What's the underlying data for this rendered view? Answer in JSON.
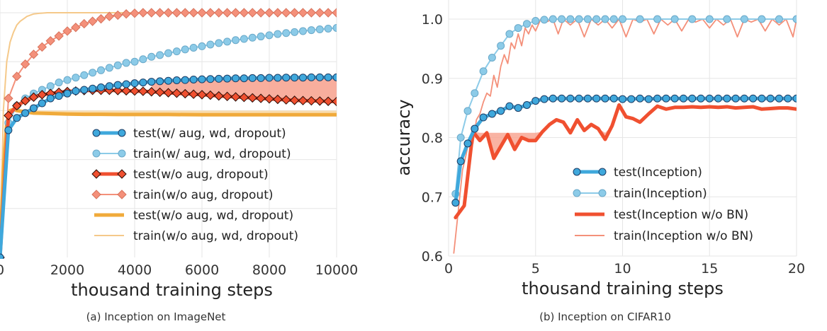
{
  "chart_data": [
    {
      "type": "line",
      "caption": "(a) Inception on ImageNet",
      "xlabel": "thousand training steps",
      "ylabel": "",
      "xlim": [
        0,
        10000
      ],
      "ylim": [
        0.0,
        1.0
      ],
      "x_ticks": [
        "0",
        "2000",
        "4000",
        "6000",
        "8000",
        "10000"
      ],
      "y_ticks": [],
      "grid": true,
      "legend_position": "center-right",
      "colors": {
        "blue": "#3fa8dc",
        "lightblue": "#8ccbe8",
        "red": "#f05030",
        "salmon": "#f4907a",
        "orange": "#f0aa3a",
        "lightorange": "#f5c98a"
      },
      "series": [
        {
          "name": "test(w/ aug, wd, dropout)",
          "style": "blue-thick-markers",
          "x": [
            0,
            250,
            500,
            750,
            1000,
            1250,
            1500,
            1750,
            2000,
            2250,
            2500,
            2750,
            3000,
            3250,
            3500,
            3750,
            4000,
            4250,
            4500,
            4750,
            5000,
            5250,
            5500,
            5750,
            6000,
            6250,
            6500,
            6750,
            7000,
            7250,
            7500,
            7750,
            8000,
            8250,
            8500,
            8750,
            9000,
            9250,
            9500,
            9750,
            10000
          ],
          "y": [
            0.0,
            0.52,
            0.57,
            0.59,
            0.61,
            0.63,
            0.65,
            0.66,
            0.67,
            0.68,
            0.685,
            0.69,
            0.695,
            0.7,
            0.705,
            0.708,
            0.712,
            0.715,
            0.718,
            0.72,
            0.722,
            0.724,
            0.725,
            0.727,
            0.728,
            0.729,
            0.73,
            0.731,
            0.732,
            0.732,
            0.733,
            0.733,
            0.734,
            0.734,
            0.735,
            0.735,
            0.735,
            0.736,
            0.736,
            0.736,
            0.736
          ]
        },
        {
          "name": "train(w/ aug, wd, dropout)",
          "style": "lightblue-thin-markers",
          "x": [
            0,
            250,
            500,
            750,
            1000,
            1250,
            1500,
            1750,
            2000,
            2250,
            2500,
            2750,
            3000,
            3250,
            3500,
            3750,
            4000,
            4250,
            4500,
            4750,
            5000,
            5250,
            5500,
            5750,
            6000,
            6250,
            6500,
            6750,
            7000,
            7250,
            7500,
            7750,
            8000,
            8250,
            8500,
            8750,
            9000,
            9250,
            9500,
            9750,
            10000
          ],
          "y": [
            0.0,
            0.55,
            0.62,
            0.65,
            0.67,
            0.685,
            0.7,
            0.715,
            0.725,
            0.735,
            0.745,
            0.755,
            0.765,
            0.775,
            0.785,
            0.795,
            0.8,
            0.81,
            0.82,
            0.827,
            0.835,
            0.842,
            0.85,
            0.857,
            0.863,
            0.87,
            0.876,
            0.882,
            0.888,
            0.893,
            0.898,
            0.903,
            0.908,
            0.913,
            0.917,
            0.921,
            0.925,
            0.929,
            0.932,
            0.935,
            0.938
          ]
        },
        {
          "name": "test(w/o aug, dropout)",
          "style": "red-thick-diamonds",
          "x": [
            0,
            250,
            500,
            750,
            1000,
            1250,
            1500,
            1750,
            2000,
            2250,
            2500,
            2750,
            3000,
            3250,
            3500,
            3750,
            4000,
            4250,
            4500,
            4750,
            5000,
            5250,
            5500,
            5750,
            6000,
            6250,
            6500,
            6750,
            7000,
            7250,
            7500,
            7750,
            8000,
            8250,
            8500,
            8750,
            9000,
            9250,
            9500,
            9750,
            10000
          ],
          "y": [
            0.0,
            0.58,
            0.62,
            0.64,
            0.655,
            0.665,
            0.67,
            0.675,
            0.678,
            0.68,
            0.682,
            0.683,
            0.683,
            0.683,
            0.682,
            0.681,
            0.68,
            0.679,
            0.677,
            0.675,
            0.673,
            0.671,
            0.669,
            0.667,
            0.665,
            0.663,
            0.66,
            0.658,
            0.656,
            0.654,
            0.652,
            0.65,
            0.648,
            0.646,
            0.644,
            0.642,
            0.641,
            0.64,
            0.639,
            0.638,
            0.637
          ]
        },
        {
          "name": "train(w/o aug, dropout)",
          "style": "salmon-thin-diamonds",
          "x": [
            0,
            250,
            500,
            750,
            1000,
            1250,
            1500,
            1750,
            2000,
            2250,
            2500,
            2750,
            3000,
            3250,
            3500,
            3750,
            4000,
            4250,
            4500,
            4750,
            5000,
            5250,
            5500,
            5750,
            6000,
            6250,
            6500,
            6750,
            7000,
            7250,
            7500,
            7750,
            8000,
            8250,
            8500,
            8750,
            9000,
            9250,
            9500,
            9750,
            10000
          ],
          "y": [
            0.0,
            0.65,
            0.74,
            0.79,
            0.83,
            0.86,
            0.885,
            0.905,
            0.925,
            0.94,
            0.955,
            0.965,
            0.975,
            0.985,
            0.99,
            0.995,
            0.998,
            1.0,
            1.0,
            1.0,
            1.0,
            1.0,
            1.0,
            1.0,
            1.0,
            1.0,
            1.0,
            1.0,
            1.0,
            1.0,
            1.0,
            1.0,
            1.0,
            1.0,
            1.0,
            1.0,
            1.0,
            1.0,
            1.0,
            1.0,
            1.0
          ]
        },
        {
          "name": "test(w/o aug, wd, dropout)",
          "style": "orange-thick",
          "x": [
            0,
            100,
            200,
            300,
            400,
            500,
            750,
            1000,
            1500,
            2000,
            2500,
            3000,
            3500,
            4000,
            5000,
            6000,
            7000,
            8000,
            9000,
            10000
          ],
          "y": [
            0.0,
            0.35,
            0.55,
            0.6,
            0.605,
            0.6,
            0.595,
            0.59,
            0.588,
            0.586,
            0.585,
            0.585,
            0.584,
            0.584,
            0.584,
            0.583,
            0.583,
            0.583,
            0.583,
            0.583
          ]
        },
        {
          "name": "train(w/o aug, wd, dropout)",
          "style": "lightorange-thin",
          "x": [
            0,
            100,
            200,
            300,
            400,
            500,
            600,
            700,
            800,
            900,
            1000,
            1200,
            1400,
            1700,
            2000,
            3000,
            4000,
            6000,
            8000,
            10000
          ],
          "y": [
            0.0,
            0.6,
            0.8,
            0.88,
            0.92,
            0.95,
            0.965,
            0.975,
            0.985,
            0.99,
            0.995,
            0.998,
            1.0,
            1.0,
            1.0,
            1.0,
            1.0,
            1.0,
            1.0,
            1.0
          ]
        },
        {
          "name": "",
          "style": "orange-band-top",
          "x": [
            500,
            1000,
            2000,
            4000,
            6000,
            8000,
            10000
          ],
          "y": [
            0.605,
            0.6,
            0.6,
            0.6,
            0.6,
            0.6,
            0.6
          ]
        }
      ],
      "legend": [
        {
          "label": "test(w/ aug, wd, dropout)",
          "style": "blue-thick-markers"
        },
        {
          "label": "train(w/ aug, wd, dropout)",
          "style": "lightblue-thin-markers"
        },
        {
          "label": "test(w/o aug, dropout)",
          "style": "red-thick-diamonds"
        },
        {
          "label": "train(w/o aug, dropout)",
          "style": "salmon-thin-diamonds"
        },
        {
          "label": "test(w/o aug, wd, dropout)",
          "style": "orange-thick"
        },
        {
          "label": "train(w/o aug, wd, dropout)",
          "style": "lightorange-thin"
        }
      ]
    },
    {
      "type": "line",
      "caption": "(b) Inception on CIFAR10",
      "xlabel": "thousand training steps",
      "ylabel": "accuracy",
      "xlim": [
        0,
        20
      ],
      "ylim": [
        0.6,
        1.0
      ],
      "x_ticks": [
        "0",
        "5",
        "10",
        "15",
        "20"
      ],
      "y_ticks": [
        "0.6",
        "0.7",
        "0.8",
        "0.9",
        "1.0"
      ],
      "grid": true,
      "legend_position": "lower-right",
      "series": [
        {
          "name": "test(Inception)",
          "style": "blue-thick-markers",
          "x": [
            0.4,
            0.7,
            1.1,
            1.5,
            2.0,
            2.5,
            3.0,
            3.5,
            4.0,
            4.5,
            5.0,
            5.5,
            6.0,
            6.5,
            7.0,
            7.5,
            8.0,
            8.5,
            9.0,
            9.5,
            10.0,
            10.5,
            11.0,
            11.5,
            12.0,
            12.5,
            13.0,
            13.5,
            14.0,
            14.5,
            15.0,
            15.5,
            16.0,
            16.5,
            17.0,
            17.5,
            18.0,
            18.5,
            19.0,
            19.5,
            20.0
          ],
          "y": [
            0.69,
            0.76,
            0.79,
            0.815,
            0.834,
            0.84,
            0.845,
            0.853,
            0.85,
            0.855,
            0.862,
            0.865,
            0.866,
            0.866,
            0.866,
            0.866,
            0.866,
            0.866,
            0.866,
            0.866,
            0.865,
            0.865,
            0.866,
            0.865,
            0.866,
            0.866,
            0.866,
            0.866,
            0.866,
            0.866,
            0.866,
            0.866,
            0.866,
            0.866,
            0.866,
            0.866,
            0.866,
            0.866,
            0.866,
            0.866,
            0.866
          ]
        },
        {
          "name": "train(Inception)",
          "style": "lightblue-thin-markers",
          "x": [
            0.4,
            0.7,
            1.1,
            1.5,
            2.0,
            2.5,
            3.0,
            3.5,
            4.0,
            4.5,
            5.0,
            5.5,
            6.0,
            6.5,
            7.0,
            7.5,
            8.0,
            8.5,
            9.0,
            9.5,
            10.0,
            11.0,
            12.0,
            13.0,
            14.0,
            15.0,
            16.0,
            17.0,
            18.0,
            19.0,
            20.0
          ],
          "y": [
            0.705,
            0.8,
            0.845,
            0.875,
            0.912,
            0.935,
            0.955,
            0.975,
            0.985,
            0.992,
            0.997,
            0.999,
            1.0,
            1.0,
            1.0,
            1.0,
            1.0,
            1.0,
            1.0,
            1.0,
            1.0,
            1.0,
            1.0,
            1.0,
            1.0,
            1.0,
            1.0,
            1.0,
            1.0,
            1.0,
            1.0
          ]
        },
        {
          "name": "test(Inception w/o BN)",
          "style": "red-thick",
          "x": [
            0.4,
            0.9,
            1.4,
            1.8,
            2.2,
            2.6,
            3.0,
            3.4,
            3.8,
            4.2,
            4.6,
            5.0,
            5.4,
            5.8,
            6.2,
            6.6,
            7.0,
            7.4,
            7.8,
            8.2,
            8.6,
            9.0,
            9.4,
            9.8,
            10.2,
            10.6,
            11.0,
            11.5,
            12.0,
            12.5,
            13.0,
            13.5,
            14.0,
            14.5,
            15.0,
            15.5,
            16.0,
            16.5,
            17.0,
            17.5,
            18.0,
            18.5,
            19.0,
            19.5,
            20.0
          ],
          "y": [
            0.665,
            0.685,
            0.81,
            0.795,
            0.808,
            0.765,
            0.785,
            0.805,
            0.78,
            0.8,
            0.795,
            0.795,
            0.81,
            0.822,
            0.83,
            0.826,
            0.808,
            0.83,
            0.812,
            0.822,
            0.815,
            0.797,
            0.82,
            0.855,
            0.835,
            0.832,
            0.826,
            0.84,
            0.853,
            0.848,
            0.851,
            0.851,
            0.852,
            0.851,
            0.852,
            0.851,
            0.852,
            0.85,
            0.851,
            0.852,
            0.848,
            0.849,
            0.85,
            0.85,
            0.848
          ]
        },
        {
          "name": "train(Inception w/o BN)",
          "style": "salmon-thin-noisy",
          "x": [
            0.3,
            0.5,
            0.8,
            1.0,
            1.2,
            1.4,
            1.6,
            1.8,
            2.0,
            2.2,
            2.4,
            2.6,
            2.8,
            3.0,
            3.2,
            3.4,
            3.6,
            3.8,
            4.0,
            4.2,
            4.4,
            4.6,
            4.8,
            5.0,
            5.3,
            5.6,
            6.0,
            6.3,
            6.6,
            7.0,
            7.4,
            7.8,
            8.2,
            8.6,
            9.0,
            9.4,
            9.8,
            10.2,
            10.6,
            11.0,
            11.4,
            11.8,
            12.2,
            12.6,
            13.0,
            13.4,
            13.8,
            14.2,
            14.6,
            15.0,
            15.4,
            15.8,
            16.2,
            16.6,
            17.0,
            17.4,
            17.8,
            18.2,
            18.6,
            19.0,
            19.4,
            19.8,
            20.0
          ],
          "y": [
            0.605,
            0.66,
            0.745,
            0.77,
            0.8,
            0.79,
            0.83,
            0.84,
            0.86,
            0.875,
            0.87,
            0.905,
            0.885,
            0.92,
            0.94,
            0.925,
            0.96,
            0.95,
            0.975,
            0.955,
            0.985,
            0.975,
            0.99,
            0.98,
            1.0,
            0.995,
            1.0,
            0.975,
            1.0,
            0.99,
            1.0,
            0.97,
            1.0,
            0.99,
            1.0,
            0.985,
            1.0,
            0.97,
            1.0,
            0.995,
            1.0,
            0.975,
            1.0,
            0.99,
            1.0,
            0.98,
            1.0,
            0.995,
            1.0,
            0.985,
            1.0,
            0.99,
            1.0,
            0.97,
            1.0,
            0.995,
            1.0,
            0.98,
            1.0,
            0.99,
            1.0,
            0.97,
            1.0
          ]
        }
      ],
      "legend": [
        {
          "label": "test(Inception)",
          "style": "blue-thick-markers"
        },
        {
          "label": "train(Inception)",
          "style": "lightblue-thin-markers"
        },
        {
          "label": "test(Inception w/o BN)",
          "style": "red-thick"
        },
        {
          "label": "train(Inception w/o BN)",
          "style": "salmon-thin"
        }
      ]
    }
  ]
}
